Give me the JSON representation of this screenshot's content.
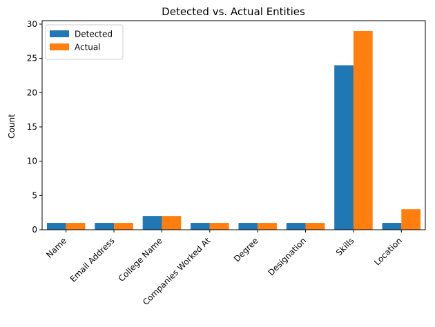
{
  "chart_data": {
    "type": "bar",
    "title": "Detected vs. Actual Entities",
    "xlabel": "",
    "ylabel": "Count",
    "ylim": [
      0,
      30.5
    ],
    "yticks": [
      0,
      5,
      10,
      15,
      20,
      25,
      30
    ],
    "categories": [
      "Name",
      "Email Address",
      "College Name",
      "Companies Worked At",
      "Degree",
      "Designation",
      "Skills",
      "Location"
    ],
    "series": [
      {
        "name": "Detected",
        "color": "#1f77b4",
        "values": [
          1,
          1,
          2,
          1,
          1,
          1,
          24,
          1
        ]
      },
      {
        "name": "Actual",
        "color": "#ff7f0e",
        "values": [
          1,
          1,
          2,
          1,
          1,
          1,
          29,
          3
        ]
      }
    ],
    "grid": false,
    "legend": "top-left"
  }
}
